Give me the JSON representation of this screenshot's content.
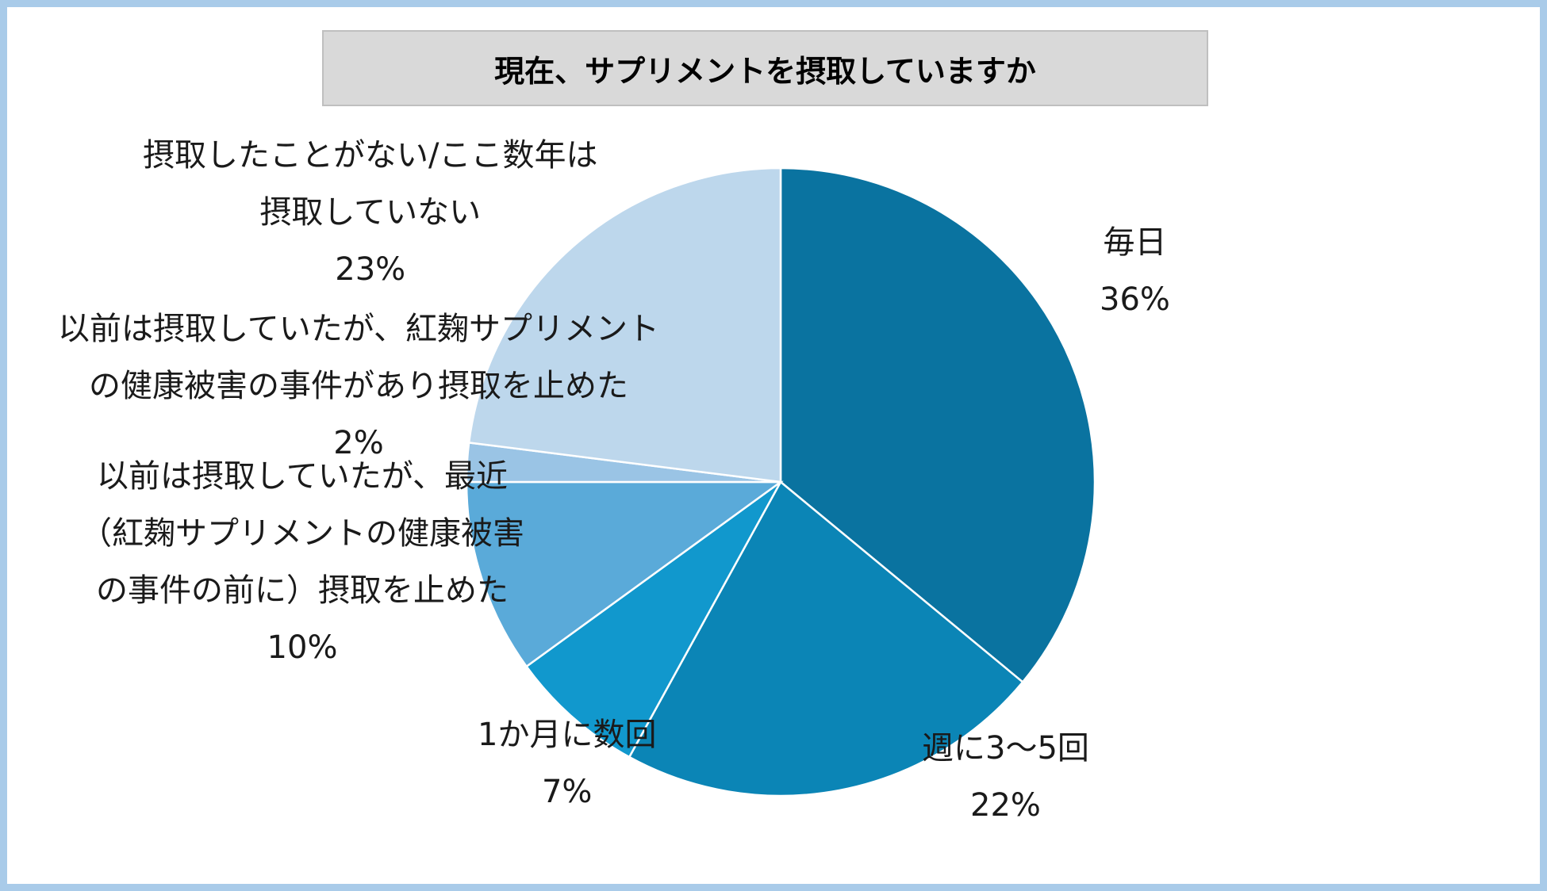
{
  "chart_data": {
    "type": "pie",
    "title": "現在、サプリメントを摂取していますか",
    "start_angle_deg": 0,
    "direction": "clockwise",
    "slices": [
      {
        "label_lines": [
          "毎日"
        ],
        "value": 36,
        "value_label": "36%",
        "color": "#0a73a0"
      },
      {
        "label_lines": [
          "週に3～5回"
        ],
        "value": 22,
        "value_label": "22%",
        "color": "#0b85b6"
      },
      {
        "label_lines": [
          "1か月に数回"
        ],
        "value": 7,
        "value_label": "7%",
        "color": "#1198cd"
      },
      {
        "label_lines": [
          "以前は摂取していたが、最近",
          "（紅麹サプリメントの健康被害",
          "の事件の前に）摂取を止めた"
        ],
        "value": 10,
        "value_label": "10%",
        "color": "#5aaad9"
      },
      {
        "label_lines": [
          "以前は摂取していたが、紅麹サプリメント",
          "の健康被害の事件があり摂取を止めた"
        ],
        "value": 2,
        "value_label": "2%",
        "color": "#9ac4e5"
      },
      {
        "label_lines": [
          "摂取したことがない/ここ数年は",
          "摂取していない"
        ],
        "value": 23,
        "value_label": "23%",
        "color": "#bdd7ec"
      }
    ]
  }
}
